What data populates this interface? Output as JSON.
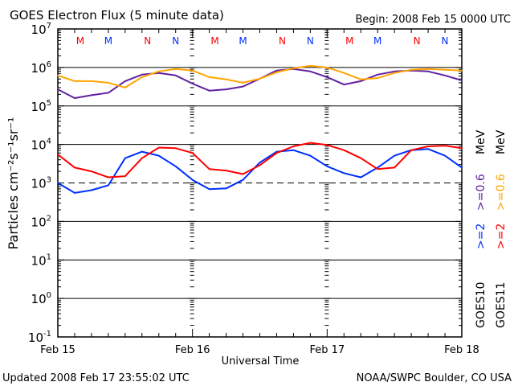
{
  "chart_data": {
    "type": "line",
    "title": "GOES Electron Flux (5 minute data)",
    "begin_label": "Begin: 2008 Feb 15 0000 UTC",
    "xlabel": "Universal Time",
    "ylabel": "Particles cm⁻²s⁻¹sr⁻¹",
    "yscale": "log",
    "ylim": [
      0.1,
      10000000
    ],
    "y_ticks": [
      {
        "base": "10",
        "exp": "7",
        "value": 10000000.0
      },
      {
        "base": "10",
        "exp": "6",
        "value": 1000000.0
      },
      {
        "base": "10",
        "exp": "5",
        "value": 100000.0
      },
      {
        "base": "10",
        "exp": "4",
        "value": 10000.0
      },
      {
        "base": "10",
        "exp": "3",
        "value": 1000.0
      },
      {
        "base": "10",
        "exp": "2",
        "value": 100.0
      },
      {
        "base": "10",
        "exp": "1",
        "value": 10.0
      },
      {
        "base": "10",
        "exp": "0",
        "value": 1.0
      },
      {
        "base": "10",
        "exp": "-1",
        "value": 0.1
      }
    ],
    "gridlines": [
      1000000.0,
      100000.0,
      10000.0,
      100.0,
      10.0,
      1.0
    ],
    "dashed_threshold": 1000.0,
    "xlim_hours": [
      0,
      72
    ],
    "x_ticks": [
      {
        "label": "Feb 15",
        "hour": 0
      },
      {
        "label": "Feb 16",
        "hour": 24
      },
      {
        "label": "Feb 17",
        "hour": 48
      },
      {
        "label": "Feb 18",
        "hour": 72
      }
    ],
    "x_hours": [
      0,
      3,
      6,
      9,
      12,
      15,
      18,
      21,
      24,
      27,
      30,
      33,
      36,
      39,
      42,
      45,
      48,
      51,
      54,
      57,
      60,
      63,
      66,
      69,
      72
    ],
    "series": [
      {
        "name": "GOES10 >=0.6 MeV",
        "color": "#6020a0",
        "values": [
          270000.0,
          160000.0,
          190000.0,
          220000.0,
          440000.0,
          650000.0,
          720000.0,
          620000.0,
          380000.0,
          250000.0,
          270000.0,
          320000.0,
          510000.0,
          830000.0,
          910000.0,
          790000.0,
          560000.0,
          360000.0,
          440000.0,
          650000.0,
          790000.0,
          830000.0,
          790000.0,
          620000.0,
          460000.0
        ]
      },
      {
        "name": "GOES11 >=0.6 MeV",
        "color": "#ffa500",
        "values": [
          620000.0,
          440000.0,
          440000.0,
          400000.0,
          300000.0,
          560000.0,
          790000.0,
          910000.0,
          830000.0,
          560000.0,
          490000.0,
          400000.0,
          510000.0,
          750000.0,
          950000.0,
          1100000.0,
          1000000.0,
          720000.0,
          490000.0,
          530000.0,
          720000.0,
          870000.0,
          910000.0,
          870000.0,
          830000.0
        ]
      },
      {
        "name": "GOES10 >=2 MeV",
        "color": "#0030ff",
        "values": [
          1000.0,
          550.0,
          650.0,
          870.0,
          4400.0,
          6500.0,
          5100.0,
          2700.0,
          1200.0,
          690.0,
          720.0,
          1200.0,
          3400.0,
          6500.0,
          7100.0,
          5100.0,
          2700.0,
          1800.0,
          1400.0,
          2500.0,
          5100.0,
          7100.0,
          7600.0,
          5100.0,
          2500.0
        ]
      },
      {
        "name": "GOES11 >=2 MeV",
        "color": "#ff0000",
        "values": [
          5500.0,
          2500.0,
          2000.0,
          1400.0,
          1500.0,
          4400.0,
          8300.0,
          8000.0,
          6000.0,
          2300.0,
          2100.0,
          1700.0,
          2900.0,
          6000.0,
          8900.0,
          11000.0,
          9700.0,
          7100.0,
          4400.0,
          2300.0,
          2500.0,
          7100.0,
          8900.0,
          9300.0,
          8000.0
        ]
      }
    ],
    "markers": [
      {
        "label": "M",
        "color": "#ff0000",
        "hour": 4
      },
      {
        "label": "M",
        "color": "#0030ff",
        "hour": 9
      },
      {
        "label": "N",
        "color": "#ff0000",
        "hour": 16
      },
      {
        "label": "N",
        "color": "#0030ff",
        "hour": 21
      },
      {
        "label": "M",
        "color": "#ff0000",
        "hour": 28
      },
      {
        "label": "M",
        "color": "#0030ff",
        "hour": 33
      },
      {
        "label": "N",
        "color": "#ff0000",
        "hour": 40
      },
      {
        "label": "N",
        "color": "#0030ff",
        "hour": 45
      },
      {
        "label": "M",
        "color": "#ff0000",
        "hour": 52
      },
      {
        "label": "M",
        "color": "#0030ff",
        "hour": 57
      },
      {
        "label": "N",
        "color": "#ff0000",
        "hour": 64
      },
      {
        "label": "N",
        "color": "#0030ff",
        "hour": 69
      }
    ],
    "legend": [
      {
        "satellite": "GOES10",
        "high": ">=2",
        "high_color": "#0030ff",
        "low": ">=0.6",
        "low_color": "#6020a0",
        "unit": "MeV"
      },
      {
        "satellite": "GOES11",
        "high": ">=2",
        "high_color": "#ff0000",
        "low": ">=0.6",
        "low_color": "#ffa500",
        "unit": "MeV"
      }
    ],
    "legend_placement": "right"
  },
  "footer": {
    "updated": "Updated 2008 Feb 17 23:55:02 UTC",
    "source": "NOAA/SWPC Boulder, CO USA"
  }
}
